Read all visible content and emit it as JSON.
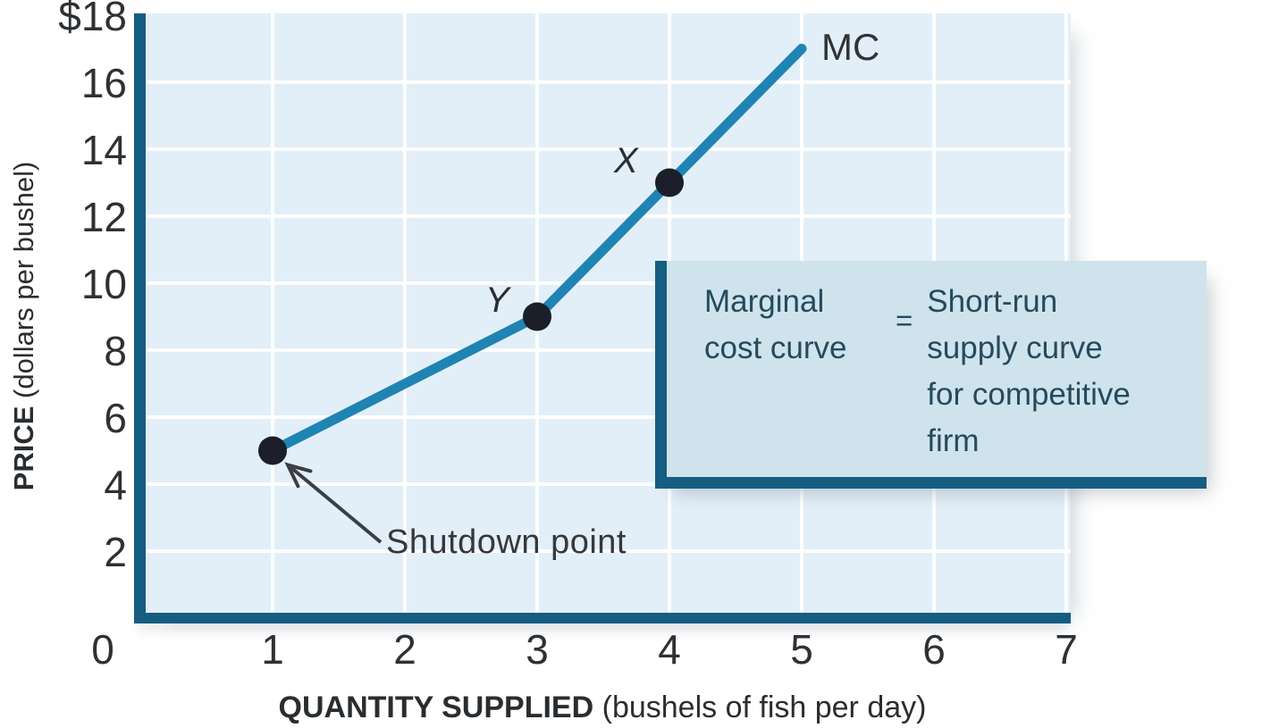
{
  "figure": {
    "y_axis_title_bold": "PRICE",
    "y_axis_title_rest": " (dollars per bushel)",
    "x_axis_title_bold": "QUANTITY SUPPLIED",
    "x_axis_title_rest": " (bushels of fish per day)",
    "curve_label": "MC",
    "point_labels": {
      "x": "X",
      "y": "Y",
      "shutdown": "Shutdown point"
    },
    "infobox": {
      "left_lines": [
        "Marginal",
        "cost curve"
      ],
      "equals": "=",
      "right_lines": [
        "Short-run",
        "supply curve",
        "for competitive",
        "firm"
      ]
    },
    "colors": {
      "axis": "#165d82",
      "curve": "#1f84b4",
      "plot_bg": "#e3eff8",
      "gridline": "#ffffff",
      "infobox_bg": "#cfe3ec",
      "infobox_text": "#254a5c",
      "dot": "#1a1f29",
      "text": "#2e3134",
      "arrow": "#3a3f45"
    }
  },
  "chart_data": {
    "type": "line",
    "title": "",
    "xlabel": "QUANTITY SUPPLIED (bushels of fish per day)",
    "ylabel": "PRICE (dollars per bushel)",
    "xlim": [
      0,
      7
    ],
    "ylim": [
      0,
      18
    ],
    "grid": true,
    "legend_position": "none",
    "x_ticks": [
      {
        "v": 0,
        "label": "0"
      },
      {
        "v": 1,
        "label": "1"
      },
      {
        "v": 2,
        "label": "2"
      },
      {
        "v": 3,
        "label": "3"
      },
      {
        "v": 4,
        "label": "4"
      },
      {
        "v": 5,
        "label": "5"
      },
      {
        "v": 6,
        "label": "6"
      },
      {
        "v": 7,
        "label": "7"
      }
    ],
    "y_ticks": [
      {
        "v": 18,
        "label": "$18"
      },
      {
        "v": 16,
        "label": "16"
      },
      {
        "v": 14,
        "label": "14"
      },
      {
        "v": 12,
        "label": "12"
      },
      {
        "v": 10,
        "label": "10"
      },
      {
        "v": 8,
        "label": "8"
      },
      {
        "v": 6,
        "label": "6"
      },
      {
        "v": 4,
        "label": "4"
      },
      {
        "v": 2,
        "label": "2"
      }
    ],
    "series": [
      {
        "name": "MC",
        "x": [
          1,
          3,
          4,
          5
        ],
        "y": [
          5,
          9,
          13,
          17
        ]
      }
    ],
    "marked_points": [
      {
        "x": 1,
        "y": 5,
        "label": "Shutdown point"
      },
      {
        "x": 3,
        "y": 9,
        "label": "Y"
      },
      {
        "x": 4,
        "y": 13,
        "label": "X"
      }
    ],
    "annotations": [
      "Shutdown point",
      "Marginal cost curve = Short-run supply curve for competitive firm"
    ]
  }
}
